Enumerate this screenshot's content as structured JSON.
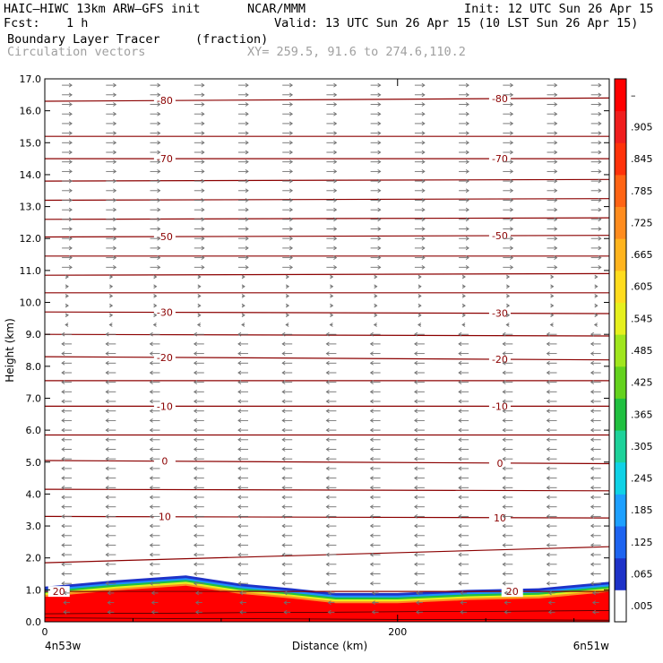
{
  "header": {
    "model": "HAIC–HIWC 13km ARW–GFS init",
    "org": "NCAR/MMM",
    "init": "Init: 12 UTC Sun 26 Apr 15",
    "fcst_label": "Fcst:",
    "fcst_value": "1 h",
    "valid": "Valid: 13 UTC Sun 26 Apr 15 (10 LST Sun 26 Apr 15)",
    "field": "Boundary Layer Tracer",
    "field_units": "(fraction)",
    "vectors": "Circulation vectors",
    "xy": "XY= 259.5, 91.6 to 274.6,110.2"
  },
  "colors": {
    "tracer_high": "#ff0000",
    "contour": "#8b0000",
    "vector": "#707070"
  },
  "chart_data": {
    "type": "heatmap",
    "title": "Boundary Layer Tracer",
    "ylabel": "Height (km)",
    "xlabel": "Distance (km)",
    "x_start_label": "4n53w",
    "x_end_label": "6n51w",
    "xlim": [
      0,
      320
    ],
    "ylim": [
      0,
      17
    ],
    "x_ticks": [
      "0",
      "200"
    ],
    "y_ticks": [
      "0.0",
      "1.0",
      "2.0",
      "3.0",
      "4.0",
      "5.0",
      "6.0",
      "7.0",
      "8.0",
      "9.0",
      "10.0",
      "11.0",
      "12.0",
      "13.0",
      "14.0",
      "15.0",
      "16.0",
      "17.0"
    ],
    "colorbar": {
      "labels": [
        ".005",
        ".065",
        ".125",
        ".185",
        ".245",
        ".305",
        ".365",
        ".425",
        ".485",
        ".545",
        ".605",
        ".665",
        ".725",
        ".785",
        ".845",
        ".905",
        "–"
      ],
      "colors": [
        "#ffffff",
        "#1e32c8",
        "#1e64f0",
        "#1ea0ff",
        "#10d2e6",
        "#1ed29a",
        "#20c040",
        "#64d21e",
        "#a0e61e",
        "#e6f01e",
        "#ffdc1e",
        "#ffb41e",
        "#ff8c1e",
        "#ff6414",
        "#ff320a",
        "#f01e1e",
        "#ff0000"
      ]
    },
    "tracer_top_km": [
      [
        0,
        1.1
      ],
      [
        40,
        1.3
      ],
      [
        80,
        1.45
      ],
      [
        110,
        1.2
      ],
      [
        140,
        1.05
      ],
      [
        165,
        0.9
      ],
      [
        200,
        0.9
      ],
      [
        240,
        1.0
      ],
      [
        280,
        1.05
      ],
      [
        320,
        1.25
      ]
    ],
    "contours": [
      {
        "level": "20",
        "y": [
          0.95,
          0.95
        ],
        "labels": [
          {
            "x": 8,
            "text": "20"
          },
          {
            "x": 265,
            "text": "20"
          }
        ]
      },
      {
        "level": "",
        "y": [
          1.85,
          2.35
        ]
      },
      {
        "level": "10",
        "y": [
          3.3,
          3.25
        ],
        "labels": [
          {
            "x": 68,
            "text": "10"
          },
          {
            "x": 258,
            "text": "10"
          }
        ]
      },
      {
        "level": "",
        "y": [
          4.15,
          4.1
        ]
      },
      {
        "level": "0",
        "y": [
          5.05,
          4.95
        ],
        "labels": [
          {
            "x": 68,
            "text": "0"
          },
          {
            "x": 258,
            "text": "0"
          }
        ]
      },
      {
        "level": "",
        "y": [
          5.85,
          5.85
        ]
      },
      {
        "level": "-10",
        "y": [
          6.75,
          6.75
        ],
        "labels": [
          {
            "x": 68,
            "text": "-10"
          },
          {
            "x": 258,
            "text": "-10"
          }
        ]
      },
      {
        "level": "",
        "y": [
          7.55,
          7.55
        ]
      },
      {
        "level": "-20",
        "y": [
          8.3,
          8.2
        ],
        "labels": [
          {
            "x": 68,
            "text": "-20"
          },
          {
            "x": 258,
            "text": "-20"
          }
        ]
      },
      {
        "level": "",
        "y": [
          9.0,
          8.95
        ]
      },
      {
        "level": "-30",
        "y": [
          9.7,
          9.65
        ],
        "labels": [
          {
            "x": 68,
            "text": "-30"
          },
          {
            "x": 258,
            "text": "-30"
          }
        ]
      },
      {
        "level": "",
        "y": [
          10.3,
          10.3
        ]
      },
      {
        "level": "",
        "y": [
          10.85,
          10.9
        ]
      },
      {
        "level": "",
        "y": [
          11.45,
          11.45
        ]
      },
      {
        "level": "-50",
        "y": [
          12.05,
          12.1
        ],
        "labels": [
          {
            "x": 68,
            "text": "-50"
          },
          {
            "x": 258,
            "text": "-50"
          }
        ]
      },
      {
        "level": "",
        "y": [
          12.6,
          12.65
        ]
      },
      {
        "level": "",
        "y": [
          13.2,
          13.25
        ]
      },
      {
        "level": "",
        "y": [
          13.8,
          13.85
        ]
      },
      {
        "level": "-70",
        "y": [
          14.5,
          14.5
        ],
        "labels": [
          {
            "x": 68,
            "text": "-70"
          },
          {
            "x": 258,
            "text": "-70"
          }
        ]
      },
      {
        "level": "",
        "y": [
          15.2,
          15.2
        ]
      },
      {
        "level": "-80",
        "y": [
          16.3,
          16.4
        ],
        "labels": [
          {
            "x": 68,
            "text": "-80"
          },
          {
            "x": 258,
            "text": "-80"
          }
        ]
      }
    ],
    "vectors": {
      "spacing_km": 25,
      "levels_km": [
        0.3,
        0.6,
        0.9,
        1.2,
        1.5,
        1.8,
        2.1,
        2.4,
        2.7,
        3.0,
        3.3,
        3.6,
        3.9,
        4.2,
        4.5,
        4.8,
        5.1,
        5.4,
        5.7,
        6.0,
        6.3,
        6.6,
        6.9,
        7.2,
        7.5,
        7.8,
        8.1,
        8.4,
        8.7,
        9.0,
        9.3,
        9.6,
        9.9,
        10.2,
        10.5,
        10.8,
        11.1,
        11.4,
        11.7,
        12.0,
        12.3,
        12.6,
        12.9,
        13.2,
        13.5,
        13.8,
        14.1,
        14.4,
        14.7,
        15.0,
        15.3,
        15.6,
        15.9,
        16.2,
        16.5,
        16.8
      ]
    }
  }
}
